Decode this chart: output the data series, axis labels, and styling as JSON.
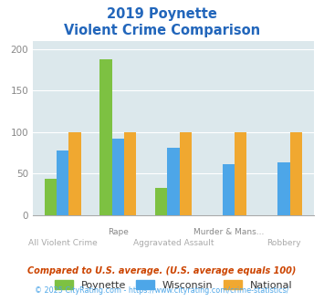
{
  "title_line1": "2019 Poynette",
  "title_line2": "Violent Crime Comparison",
  "title_color": "#2266bb",
  "categories": [
    "All Violent Crime",
    "Rape",
    "Aggravated Assault",
    "Murder & Mans...",
    "Robbery"
  ],
  "poynette": [
    44,
    188,
    33,
    0,
    0
  ],
  "wisconsin": [
    78,
    92,
    81,
    61,
    64
  ],
  "national": [
    100,
    100,
    100,
    100,
    100
  ],
  "poynette_color": "#7dc142",
  "wisconsin_color": "#4da6e8",
  "national_color": "#f0a830",
  "bg_color": "#dce8ec",
  "ylim": [
    0,
    210
  ],
  "yticks": [
    0,
    50,
    100,
    150,
    200
  ],
  "footnote1": "Compared to U.S. average. (U.S. average equals 100)",
  "footnote2": "© 2025 CityRating.com - https://www.cityrating.com/crime-statistics/",
  "footnote1_color": "#cc4400",
  "footnote2_color": "#4da6e8",
  "legend_labels": [
    "Poynette",
    "Wisconsin",
    "National"
  ],
  "bar_width": 0.22
}
